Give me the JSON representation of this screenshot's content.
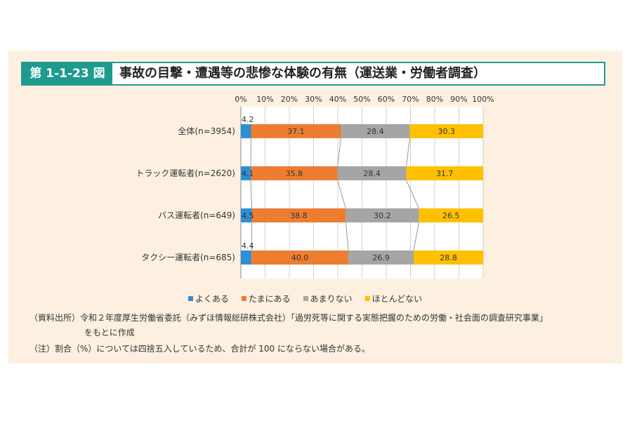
{
  "title": {
    "tag": "第 1-1-23 図",
    "text": "事故の目撃・遭遇等の悲惨な体験の有無（運送業・労働者調査）"
  },
  "chart_data": {
    "type": "bar",
    "stacked": true,
    "orientation": "horizontal",
    "categories": [
      "全体(n=3954)",
      "トラック運転者(n=2620)",
      "バス運転者(n=649)",
      "タクシー運転者(n=685)"
    ],
    "series": [
      {
        "name": "よくある",
        "values": [
          4.2,
          4.1,
          4.5,
          4.4
        ],
        "color": "#2e8fd3"
      },
      {
        "name": "たまにある",
        "values": [
          37.1,
          35.8,
          38.8,
          40.0
        ],
        "color": "#ed7d31"
      },
      {
        "name": "あまりない",
        "values": [
          28.4,
          28.4,
          30.2,
          26.9
        ],
        "color": "#a5a5a5"
      },
      {
        "name": "ほとんどない",
        "values": [
          30.3,
          31.7,
          26.5,
          28.8
        ],
        "color": "#ffc000"
      }
    ],
    "value_labels": [
      [
        "4.2",
        "37.1",
        "28.4",
        "30.3"
      ],
      [
        "4.1",
        "35.8",
        "28.4",
        "31.7"
      ],
      [
        "4.5",
        "38.8",
        "30.2",
        "26.5"
      ],
      [
        "4.4",
        "40.0",
        "26.9",
        "28.8"
      ]
    ],
    "x_ticks": [
      "0%",
      "10%",
      "20%",
      "30%",
      "40%",
      "50%",
      "60%",
      "70%",
      "80%",
      "90%",
      "100%"
    ],
    "xlim": [
      0,
      100
    ],
    "grid": true,
    "legend_position": "bottom",
    "series_lines": true
  },
  "notes": {
    "source_line1": "（資料出所）令和２年度厚生労働省委託（みずほ情報総研株式会社）「過労死等に関する実態把握のための労働・社会面の調査研究事業」",
    "source_line2": "をもとに作成",
    "note": "（注）割合（%）については四捨五入しているため、合計が 100 にならない場合がある。"
  }
}
